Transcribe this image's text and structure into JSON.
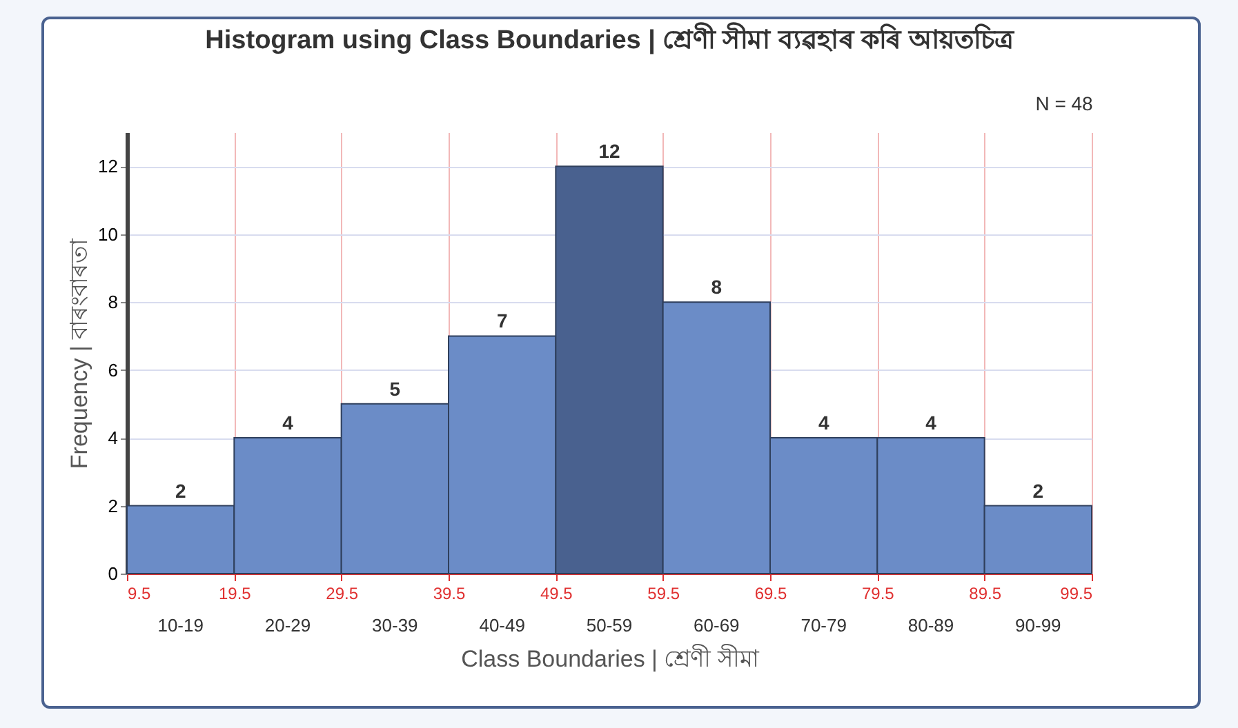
{
  "chart_data": {
    "type": "histogram",
    "title": "Histogram using Class Boundaries | শ্রেণী সীমা ব্যৱহাৰ কৰি আয়তচিত্ৰ",
    "xlabel": "Class Boundaries | শ্ৰেণী সীমা",
    "ylabel": "Frequency | বাৰংবাৰতা",
    "bins": [
      9.5,
      19.5,
      29.5,
      39.5,
      49.5,
      59.5,
      69.5,
      79.5,
      89.5,
      99.5
    ],
    "values": [
      2,
      4,
      5,
      7,
      12,
      8,
      4,
      4,
      2
    ],
    "colors": [
      "#6b8cc7",
      "#6b8cc7",
      "#6b8cc7",
      "#6b8cc7",
      "#49618f",
      "#6b8cc7",
      "#6b8cc7",
      "#6b8cc7",
      "#6b8cc7"
    ],
    "xlim": [
      9.5,
      99.5
    ],
    "xticks": [
      9.5,
      19.5,
      29.5,
      39.5,
      49.5,
      59.5,
      69.5,
      79.5,
      89.5,
      99.5
    ],
    "ylim": [
      0,
      13
    ],
    "yticks": [
      0,
      2,
      4,
      6,
      8,
      10,
      12
    ],
    "grid": true,
    "data_labels": true,
    "annotations": [
      "N = 48",
      "10-19",
      "20-29",
      "30-39",
      "40-49",
      "50-59",
      "60-69",
      "70-79",
      "80-89",
      "90-99"
    ]
  }
}
